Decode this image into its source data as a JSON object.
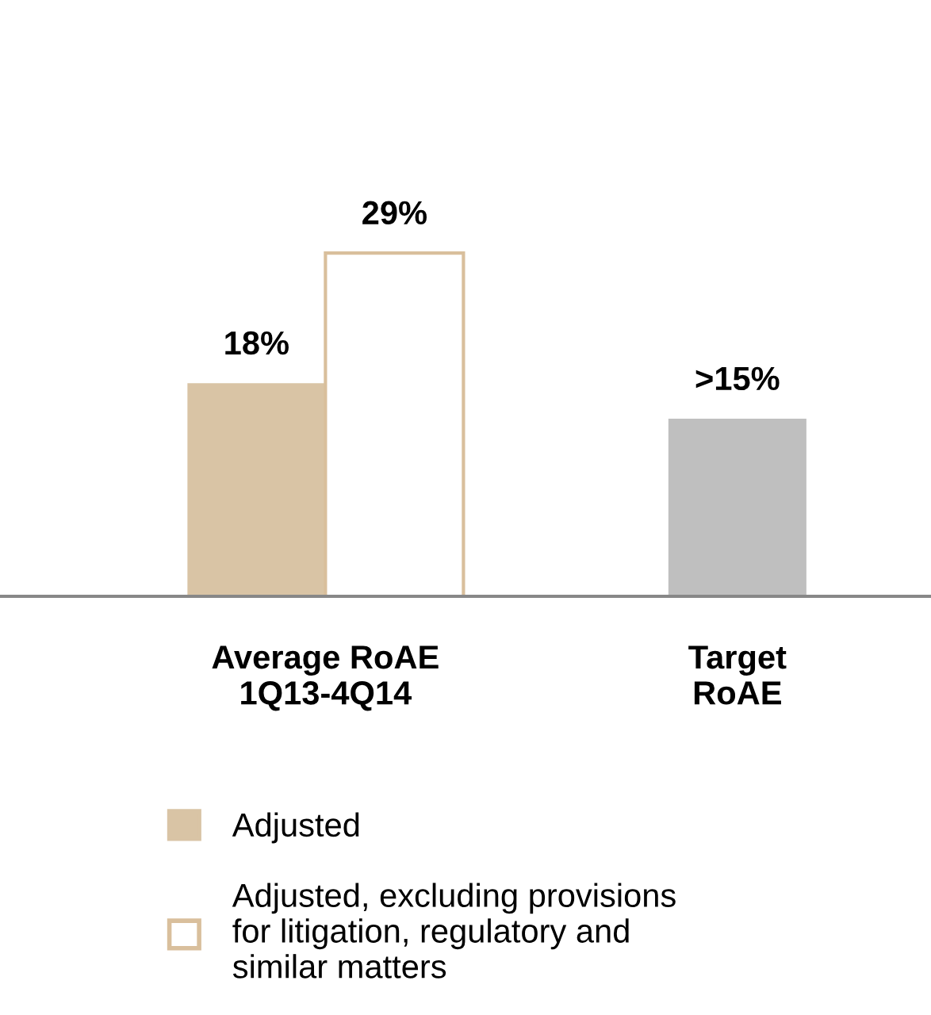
{
  "chart_data": {
    "type": "bar",
    "categories": [
      "Average RoAE\n1Q13-4Q14",
      "Target\nRoAE"
    ],
    "series": [
      {
        "name": "Adjusted",
        "color": "#d9c4a5",
        "values": [
          18,
          null
        ],
        "value_labels": [
          "18%",
          null
        ]
      },
      {
        "name": "Adjusted, excluding provisions\nfor litigation, regulatory and\nsimilar matters",
        "color": "#d9bf9c",
        "colors": [
          "#ffffff",
          null
        ],
        "values": [
          29,
          null
        ],
        "value_labels": [
          "29%",
          null
        ]
      },
      {
        "color": "#bfbfbf",
        "values": [
          null,
          15
        ],
        "value_labels": [
          null,
          ">15%"
        ]
      }
    ],
    "legend": "bottom",
    "grid": false,
    "tick_labels": "x"
  }
}
